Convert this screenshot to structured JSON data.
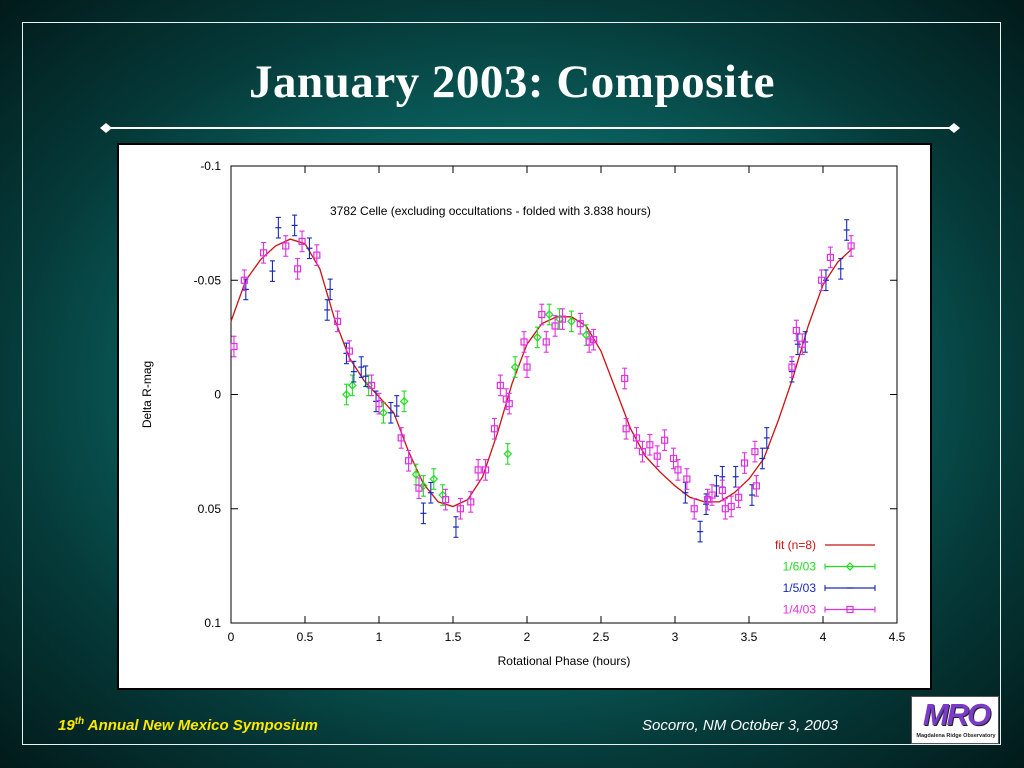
{
  "slide": {
    "title": "January 2003: Composite",
    "footer_left_num": "19",
    "footer_left_sup": "th",
    "footer_left_rest": " Annual New Mexico Symposium",
    "footer_right": "Socorro, NM October 3, 2003",
    "logo_text": "MRO",
    "logo_subtext": "Magdalena Ridge Observatory"
  },
  "colors": {
    "fit": "#cc1111",
    "s_1_6_03": "#22dd22",
    "s_1_5_03": "#1a2ab8",
    "s_1_4_03": "#e030e0"
  },
  "chart_data": {
    "type": "scatter",
    "title": "3782 Celle (excluding occultations - folded with 3.838 hours)",
    "xlabel": "Rotational Phase (hours)",
    "ylabel": "Delta R-mag",
    "xlim": [
      0,
      4.5
    ],
    "ylim": [
      -0.1,
      0.1
    ],
    "y_inverted": true,
    "xticks": [
      "0",
      "0.5",
      "1",
      "1.5",
      "2",
      "2.5",
      "3",
      "3.5",
      "4",
      "4.5"
    ],
    "yticks": [
      "-0.1",
      "-0.05",
      "0",
      "0.05",
      "0.1"
    ],
    "grid": false,
    "legend_position": "bottom-right",
    "series": [
      {
        "name": "fit (n=8)",
        "kind": "line",
        "color_key": "fit",
        "x": [
          0,
          0.1,
          0.2,
          0.3,
          0.4,
          0.5,
          0.6,
          0.7,
          0.8,
          0.9,
          1.0,
          1.1,
          1.2,
          1.3,
          1.4,
          1.5,
          1.6,
          1.7,
          1.8,
          1.9,
          2.0,
          2.1,
          2.2,
          2.3,
          2.4,
          2.5,
          2.6,
          2.7,
          2.8,
          2.9,
          3.0,
          3.1,
          3.2,
          3.3,
          3.4,
          3.5,
          3.6,
          3.7,
          3.8,
          3.9,
          4.0,
          4.1,
          4.2
        ],
        "y": [
          -0.032,
          -0.05,
          -0.059,
          -0.065,
          -0.068,
          -0.066,
          -0.055,
          -0.033,
          -0.016,
          -0.006,
          0.001,
          0.008,
          0.025,
          0.039,
          0.047,
          0.049,
          0.046,
          0.036,
          0.017,
          -0.005,
          -0.022,
          -0.031,
          -0.034,
          -0.034,
          -0.03,
          -0.019,
          -0.002,
          0.015,
          0.027,
          0.034,
          0.04,
          0.045,
          0.047,
          0.047,
          0.043,
          0.037,
          0.028,
          0.011,
          -0.008,
          -0.03,
          -0.048,
          -0.058,
          -0.064
        ]
      },
      {
        "name": "1/6/03",
        "marker": "diamond",
        "color_key": "s_1_6_03",
        "x": [
          0.78,
          0.82,
          0.93,
          1.03,
          1.17,
          1.25,
          1.3,
          1.37,
          1.43,
          1.87,
          1.92,
          2.07,
          2.15,
          2.22,
          2.3,
          2.4
        ],
        "y": [
          0.0,
          -0.004,
          -0.004,
          0.008,
          0.003,
          0.035,
          0.04,
          0.037,
          0.044,
          0.026,
          -0.012,
          -0.025,
          -0.035,
          -0.033,
          -0.032,
          -0.026
        ]
      },
      {
        "name": "1/5/03",
        "marker": "plus",
        "color_key": "s_1_5_03",
        "x": [
          0.1,
          0.28,
          0.32,
          0.43,
          0.53,
          0.65,
          0.67,
          0.78,
          0.83,
          0.88,
          0.91,
          0.98,
          1.08,
          1.12,
          1.3,
          1.35,
          1.52,
          3.07,
          3.17,
          3.21,
          3.28,
          3.32,
          3.41,
          3.52,
          3.59,
          3.62,
          3.79,
          3.83,
          3.88,
          4.02,
          4.12,
          4.16
        ],
        "y": [
          -0.046,
          -0.054,
          -0.073,
          -0.074,
          -0.064,
          -0.037,
          -0.046,
          -0.018,
          -0.01,
          -0.012,
          -0.008,
          0.003,
          0.008,
          0.005,
          0.052,
          0.043,
          0.058,
          0.043,
          0.06,
          0.048,
          0.04,
          0.036,
          0.036,
          0.044,
          0.028,
          0.019,
          -0.01,
          -0.022,
          -0.023,
          -0.05,
          -0.055,
          -0.072
        ]
      },
      {
        "name": "1/4/03",
        "marker": "square",
        "color_key": "s_1_4_03",
        "x": [
          0.02,
          0.09,
          0.22,
          0.37,
          0.45,
          0.48,
          0.58,
          0.72,
          0.8,
          0.95,
          1.0,
          1.15,
          1.2,
          1.27,
          1.45,
          1.55,
          1.62,
          1.67,
          1.72,
          1.78,
          1.82,
          1.86,
          1.88,
          1.98,
          2.0,
          2.1,
          2.13,
          2.19,
          2.24,
          2.36,
          2.42,
          2.45,
          2.66,
          2.67,
          2.74,
          2.78,
          2.83,
          2.88,
          2.93,
          2.99,
          3.02,
          3.08,
          3.13,
          3.22,
          3.25,
          3.32,
          3.34,
          3.38,
          3.43,
          3.47,
          3.54,
          3.55,
          3.79,
          3.82,
          3.86,
          3.99,
          4.05,
          4.19
        ],
        "y": [
          -0.021,
          -0.05,
          -0.062,
          -0.065,
          -0.055,
          -0.067,
          -0.061,
          -0.032,
          -0.019,
          -0.004,
          0.004,
          0.019,
          0.029,
          0.041,
          0.046,
          0.05,
          0.047,
          0.033,
          0.033,
          0.015,
          -0.004,
          0.002,
          0.004,
          -0.023,
          -0.012,
          -0.035,
          -0.023,
          -0.03,
          -0.033,
          -0.031,
          -0.023,
          -0.024,
          -0.007,
          0.015,
          0.019,
          0.025,
          0.022,
          0.027,
          0.02,
          0.028,
          0.033,
          0.037,
          0.05,
          0.046,
          0.044,
          0.042,
          0.05,
          0.049,
          0.045,
          0.03,
          0.025,
          0.04,
          -0.012,
          -0.028,
          -0.022,
          -0.05,
          -0.06,
          -0.065
        ]
      }
    ]
  }
}
